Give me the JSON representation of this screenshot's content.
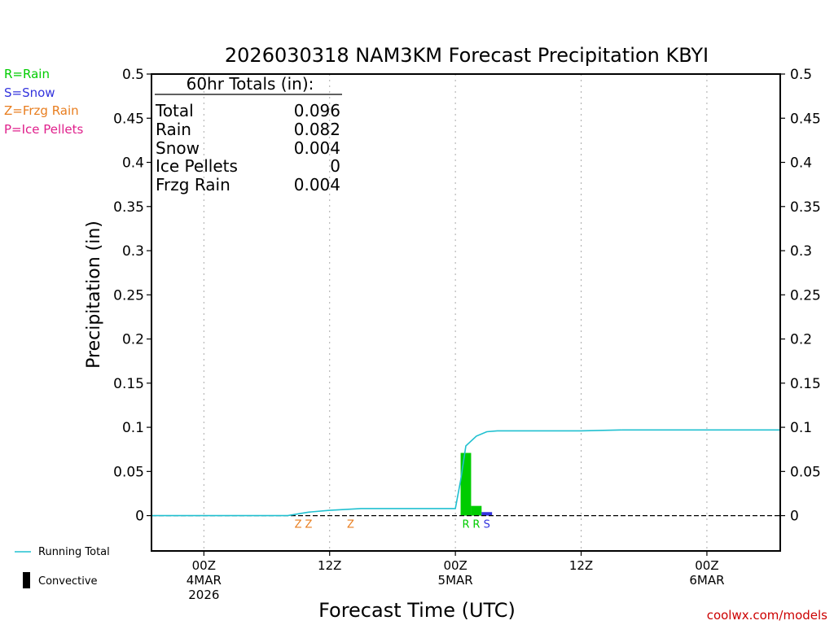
{
  "title": "2026030318 NAM3KM Forecast Precipitation KBYI",
  "legend": {
    "rain": "R=Rain",
    "snow": "S=Snow",
    "frzg": "Z=Frzg Rain",
    "ice": "P=Ice Pellets",
    "running_total": "Running Total",
    "convective": "Convective"
  },
  "totals": {
    "header": "60hr Totals (in):",
    "rows": [
      {
        "label": "Total",
        "value": "0.096"
      },
      {
        "label": "Rain",
        "value": "0.082"
      },
      {
        "label": "Snow",
        "value": "0.004"
      },
      {
        "label": "Ice Pellets",
        "value": "0"
      },
      {
        "label": "Frzg Rain",
        "value": "0.004"
      }
    ]
  },
  "watermark": "coolwx.com/models",
  "colors": {
    "rain": "#00cc00",
    "snow": "#3333dd",
    "frzg": "#e87d1e",
    "ice": "#e0208c",
    "running_total": "#20c0d0",
    "grid": "#aaaaaa"
  },
  "chart_data": {
    "type": "bar",
    "title": "2026030318 NAM3KM Forecast Precipitation KBYI",
    "xlabel": "Forecast Time (UTC)",
    "ylabel": "Precipitation (in)",
    "ylim": [
      -0.04,
      0.5
    ],
    "xlim_hours": [
      -5,
      55
    ],
    "yticks": [
      0,
      0.05,
      0.1,
      0.15,
      0.2,
      0.25,
      0.3,
      0.35,
      0.4,
      0.45,
      0.5
    ],
    "ytick_labels": [
      "0",
      "0.05",
      "0.1",
      "0.15",
      "0.2",
      "0.25",
      "0.3",
      "0.35",
      "0.4",
      "0.45",
      "0.5"
    ],
    "xticks": [
      {
        "hour": 0,
        "lines": [
          "00Z",
          "4MAR",
          "2026"
        ]
      },
      {
        "hour": 12,
        "lines": [
          "12Z"
        ]
      },
      {
        "hour": 24,
        "lines": [
          "00Z",
          "5MAR"
        ]
      },
      {
        "hour": 36,
        "lines": [
          "12Z"
        ]
      },
      {
        "hour": 48,
        "lines": [
          "00Z",
          "6MAR"
        ]
      }
    ],
    "bars": [
      {
        "hour_start": 24.5,
        "hour_end": 25.5,
        "value": 0.071,
        "type": "rain"
      },
      {
        "hour_start": 25.5,
        "hour_end": 26.5,
        "value": 0.011,
        "type": "rain"
      },
      {
        "hour_start": 26.5,
        "hour_end": 27.5,
        "value": 0.004,
        "type": "snow"
      }
    ],
    "ptype_markers": [
      {
        "hour": 9,
        "label": "Z",
        "type": "frzg"
      },
      {
        "hour": 10,
        "label": "Z",
        "type": "frzg"
      },
      {
        "hour": 14,
        "label": "Z",
        "type": "frzg"
      },
      {
        "hour": 25,
        "label": "R",
        "type": "rain"
      },
      {
        "hour": 26,
        "label": "R",
        "type": "rain"
      },
      {
        "hour": 27,
        "label": "S",
        "type": "snow"
      }
    ],
    "running_total": {
      "hours": [
        -5,
        0,
        6,
        8,
        9,
        10,
        12,
        15,
        18,
        21,
        24,
        24.5,
        25,
        26,
        27,
        28,
        30,
        36,
        40,
        44,
        48,
        55
      ],
      "values": [
        0,
        0,
        0,
        0,
        0.002,
        0.004,
        0.006,
        0.008,
        0.008,
        0.008,
        0.008,
        0.04,
        0.079,
        0.09,
        0.095,
        0.096,
        0.096,
        0.096,
        0.097,
        0.097,
        0.097,
        0.097
      ]
    }
  }
}
